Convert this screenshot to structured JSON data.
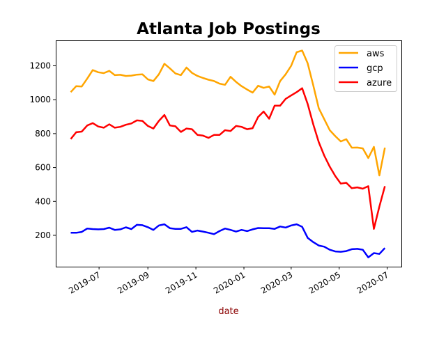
{
  "chart_data": {
    "type": "line",
    "title": "Atlanta Job Postings",
    "xlabel": "date",
    "ylabel": "",
    "x_start": "2019-05-26",
    "x_step_days": 7,
    "xlim": [
      "2019-05-07",
      "2020-07-19"
    ],
    "ylim": [
      15,
      1350
    ],
    "grid": false,
    "legend_position": "top-right",
    "x_ticks": [
      "2019-07",
      "2019-09",
      "2019-11",
      "2020-01",
      "2020-03",
      "2020-05",
      "2020-07"
    ],
    "x_tick_dates": [
      "2019-07-01",
      "2019-09-01",
      "2019-11-01",
      "2020-01-01",
      "2020-03-01",
      "2020-05-01",
      "2020-07-01"
    ],
    "y_ticks": [
      200,
      400,
      600,
      800,
      1000,
      1200
    ],
    "y_tick_labels": [
      "200",
      "400",
      "600",
      "800",
      "1000",
      "1200"
    ],
    "series": [
      {
        "name": "aws",
        "color": "#ffa500",
        "values": [
          1045,
          1080,
          1078,
          1125,
          1175,
          1162,
          1157,
          1170,
          1145,
          1147,
          1140,
          1142,
          1148,
          1150,
          1120,
          1110,
          1150,
          1212,
          1185,
          1155,
          1145,
          1190,
          1158,
          1140,
          1128,
          1118,
          1110,
          1095,
          1088,
          1135,
          1105,
          1080,
          1060,
          1042,
          1082,
          1070,
          1078,
          1030,
          1110,
          1150,
          1200,
          1280,
          1290,
          1215,
          1085,
          950,
          885,
          820,
          785,
          754,
          767,
          717,
          718,
          713,
          656,
          722,
          553,
          717
        ]
      },
      {
        "name": "gcp",
        "color": "#0000ff",
        "values": [
          215,
          215,
          220,
          240,
          237,
          235,
          237,
          245,
          232,
          235,
          247,
          237,
          262,
          260,
          248,
          232,
          258,
          265,
          242,
          238,
          238,
          248,
          220,
          228,
          222,
          215,
          207,
          225,
          240,
          232,
          222,
          232,
          225,
          235,
          243,
          242,
          242,
          238,
          252,
          246,
          258,
          265,
          250,
          185,
          160,
          140,
          133,
          115,
          105,
          103,
          107,
          118,
          120,
          115,
          70,
          95,
          90,
          125
        ]
      },
      {
        "name": "azure",
        "color": "#ff0000",
        "values": [
          768,
          808,
          812,
          848,
          862,
          842,
          835,
          855,
          835,
          840,
          852,
          860,
          878,
          875,
          845,
          830,
          875,
          910,
          848,
          843,
          810,
          830,
          826,
          792,
          788,
          775,
          792,
          792,
          820,
          815,
          845,
          840,
          826,
          832,
          898,
          930,
          888,
          965,
          965,
          1005,
          1025,
          1045,
          1068,
          975,
          855,
          750,
          670,
          605,
          550,
          505,
          510,
          478,
          483,
          475,
          490,
          238,
          370,
          490
        ]
      }
    ]
  }
}
